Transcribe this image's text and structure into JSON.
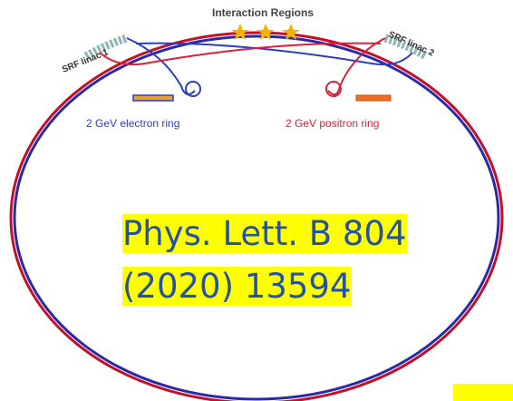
{
  "header": {
    "title": "Interaction Regions"
  },
  "labels": {
    "linac_left": "SRF linac 1",
    "linac_right": "SRF linac 2",
    "electron_ring": "2 GeV electron ring",
    "positron_ring": "2 GeV positron ring"
  },
  "citation": {
    "lines": [
      "Phys. Lett. B 804",
      "(2020) 13594"
    ]
  }
}
